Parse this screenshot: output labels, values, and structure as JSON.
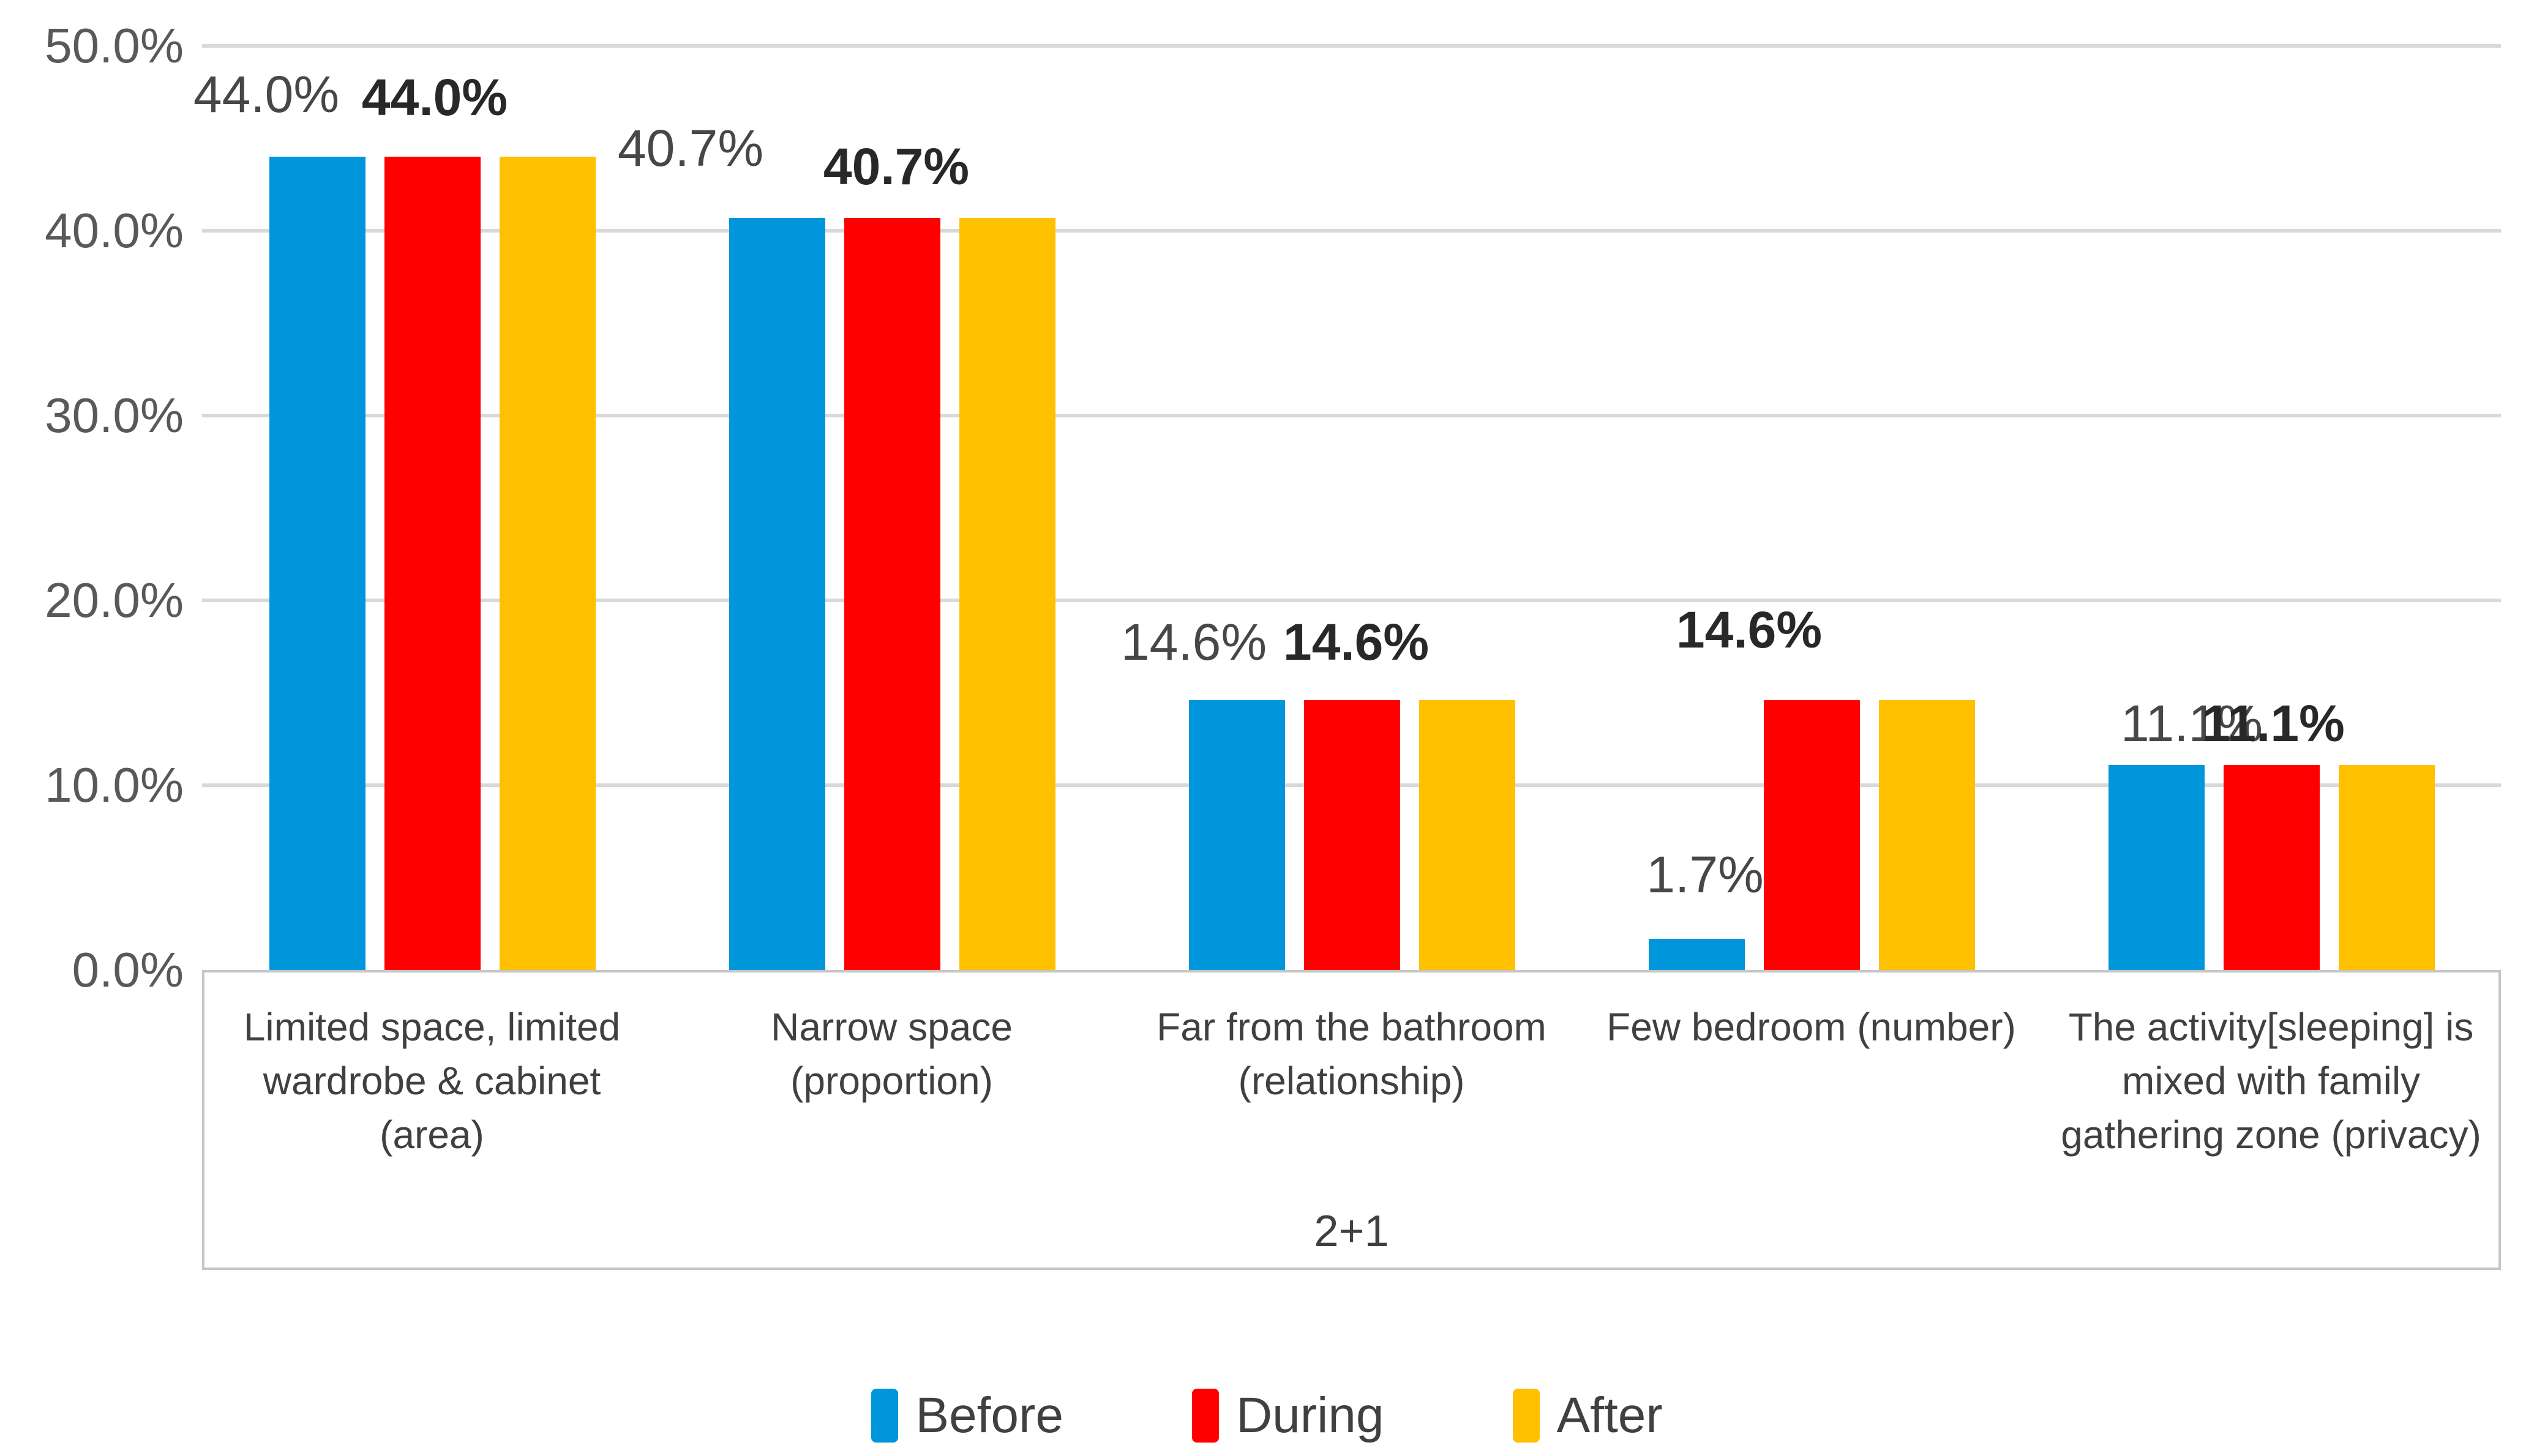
{
  "chart_data": {
    "type": "bar",
    "title": "",
    "xlabel": "",
    "ylabel": "",
    "ylim": [
      0,
      50
    ],
    "grid": true,
    "legend_position": "bottom",
    "group_label": "2+1",
    "categories": [
      "Limited space, limited\nwardrobe & cabinet\n(area)",
      "Narrow space\n(proportion)",
      "Far from the bathroom\n(relationship)",
      "Few bedroom (number)",
      "The activity[sleeping] is\nmixed with family\ngathering zone (privacy)"
    ],
    "series": [
      {
        "name": "Before",
        "color": "#0096db",
        "values": [
          44.0,
          40.7,
          14.6,
          1.7,
          11.1
        ]
      },
      {
        "name": "During",
        "color": "#fe0000",
        "values": [
          44.0,
          40.7,
          14.6,
          14.6,
          11.1
        ]
      },
      {
        "name": "After",
        "color": "#ffc000",
        "values": [
          44.0,
          40.7,
          14.6,
          14.6,
          11.1
        ]
      }
    ],
    "y_axis": {
      "ticks": [
        {
          "label": "0.0%",
          "value": 0
        },
        {
          "label": "10.0%",
          "value": 10
        },
        {
          "label": "20.0%",
          "value": 20
        },
        {
          "label": "30.0%",
          "value": 30
        },
        {
          "label": "40.0%",
          "value": 40
        },
        {
          "label": "50.0%",
          "value": 50
        }
      ]
    },
    "data_labels": {
      "plain": [
        "44.0%",
        "40.7%",
        "14.6%",
        "1.7%",
        "11.1%"
      ],
      "bold": [
        "44.0%",
        "40.7%",
        "14.6%",
        "14.6%",
        "11.1%"
      ]
    },
    "colors": {
      "gridline": "#d9d9d9",
      "axis_frame": "#c6c6c6",
      "tick_text": "#595959",
      "label_text": "#474747",
      "bold_label_text": "#282828",
      "category_text": "#404040"
    }
  }
}
